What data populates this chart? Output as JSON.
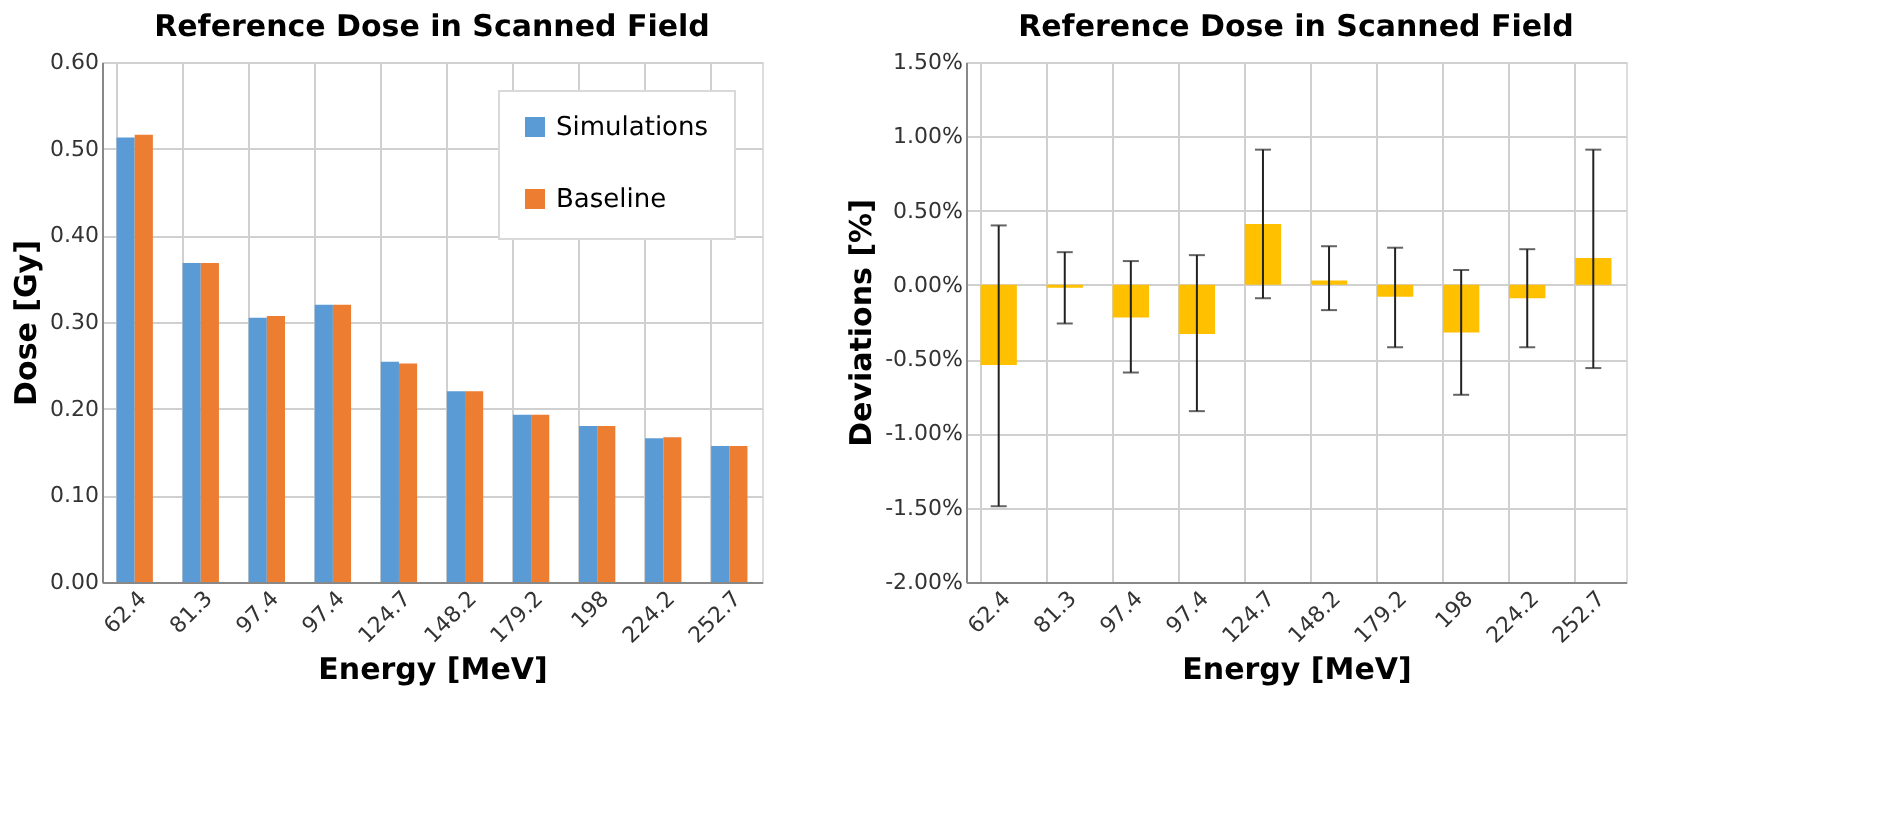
{
  "chart_data": [
    {
      "type": "bar",
      "title": "Reference Dose in Scanned Field",
      "xlabel": "Energy [MeV]",
      "ylabel": "Dose [Gy]",
      "categories": [
        "62.4",
        "81.3",
        "97.4",
        "97.4",
        "124.7",
        "148.2",
        "179.2",
        "198",
        "224.2",
        "252.7"
      ],
      "series": [
        {
          "name": "Simulations",
          "color": "#5b9bd5",
          "values": [
            0.513,
            0.368,
            0.305,
            0.32,
            0.254,
            0.22,
            0.193,
            0.18,
            0.166,
            0.157
          ]
        },
        {
          "name": "Baseline",
          "color": "#ed7d31",
          "values": [
            0.516,
            0.368,
            0.307,
            0.32,
            0.252,
            0.22,
            0.193,
            0.18,
            0.167,
            0.157
          ]
        }
      ],
      "ylim": [
        0,
        0.6
      ],
      "yticks": [
        {
          "value": 0,
          "label": "0.00"
        },
        {
          "value": 0.1,
          "label": "0.10"
        },
        {
          "value": 0.2,
          "label": "0.20"
        },
        {
          "value": 0.3,
          "label": "0.30"
        },
        {
          "value": 0.4,
          "label": "0.40"
        },
        {
          "value": 0.5,
          "label": "0.50"
        },
        {
          "value": 0.6,
          "label": "0.60"
        }
      ],
      "grid": true,
      "legend": "top right"
    },
    {
      "type": "bar",
      "title": "Reference Dose in Scanned Field",
      "xlabel": "Energy [MeV]",
      "ylabel": "Deviations  [%]",
      "categories": [
        "62.4",
        "81.3",
        "97.4",
        "97.4",
        "124.7",
        "148.2",
        "179.2",
        "198",
        "224.2",
        "252.7"
      ],
      "series": [
        {
          "color": "#ffc000",
          "values": [
            -0.54,
            -0.02,
            -0.22,
            -0.33,
            0.41,
            0.03,
            -0.08,
            -0.32,
            -0.09,
            0.18
          ],
          "errors": [
            [
              -1.49,
              0.4
            ],
            [
              -0.26,
              0.22
            ],
            [
              -0.59,
              0.16
            ],
            [
              -0.85,
              0.2
            ],
            [
              -0.09,
              0.91
            ],
            [
              -0.17,
              0.26
            ],
            [
              -0.42,
              0.25
            ],
            [
              -0.74,
              0.1
            ],
            [
              -0.42,
              0.24
            ],
            [
              -0.56,
              0.91
            ]
          ]
        }
      ],
      "ylim": [
        -2.0,
        1.5
      ],
      "yticks": [
        {
          "value": -2.0,
          "label": "-2.00%"
        },
        {
          "value": -1.5,
          "label": "-1.50%"
        },
        {
          "value": -1.0,
          "label": "-1.00%"
        },
        {
          "value": -0.5,
          "label": "-0.50%"
        },
        {
          "value": 0,
          "label": "0.00%"
        },
        {
          "value": 0.5,
          "label": "0.50%"
        },
        {
          "value": 1.0,
          "label": "1.00%"
        },
        {
          "value": 1.5,
          "label": "1.50%"
        }
      ],
      "grid": true,
      "legend": false
    }
  ]
}
